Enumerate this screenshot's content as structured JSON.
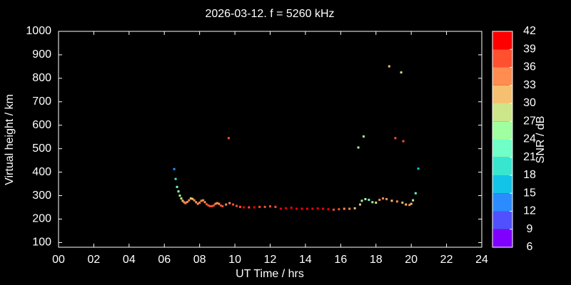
{
  "chart_data": {
    "type": "scatter",
    "title": "2026-03-12. f = 5260 kHz",
    "x_label": "UT Time / hrs",
    "y_label": "Virtual height / km",
    "colorbar_label": "SNR / dB",
    "xlim": [
      0,
      24
    ],
    "ylim": [
      80,
      1000
    ],
    "xticks": [
      {
        "value": 0,
        "label": "00"
      },
      {
        "value": 2,
        "label": "02"
      },
      {
        "value": 4,
        "label": "04"
      },
      {
        "value": 6,
        "label": "06"
      },
      {
        "value": 8,
        "label": "08"
      },
      {
        "value": 10,
        "label": "10"
      },
      {
        "value": 12,
        "label": "12"
      },
      {
        "value": 14,
        "label": "14"
      },
      {
        "value": 16,
        "label": "16"
      },
      {
        "value": 18,
        "label": "18"
      },
      {
        "value": 20,
        "label": "20"
      },
      {
        "value": 22,
        "label": "22"
      },
      {
        "value": 24,
        "label": "24"
      }
    ],
    "yticks": [
      100,
      200,
      300,
      400,
      500,
      600,
      700,
      800,
      900,
      1000
    ],
    "clim": [
      6,
      42
    ],
    "cticks": [
      6,
      9,
      12,
      15,
      18,
      21,
      24,
      27,
      30,
      33,
      36,
      39,
      42
    ],
    "colors": [
      "#8000ff",
      "#5050ff",
      "#2a8cff",
      "#12c4e6",
      "#38e6d0",
      "#70ffc8",
      "#a0ffa0",
      "#cce68a",
      "#f5c070",
      "#ff8c50",
      "#ff5030",
      "#ff0000"
    ],
    "series": [
      {
        "x": [
          6.56,
          6.64,
          6.72,
          6.8,
          6.88,
          6.96,
          7.04,
          7.12,
          7.2,
          7.3,
          7.4,
          7.5,
          7.6,
          7.7,
          7.8,
          7.9,
          8.0,
          8.1,
          8.2,
          8.3,
          8.4,
          8.5,
          8.6,
          8.7,
          8.8,
          8.9,
          9.0,
          9.1,
          9.2,
          9.3,
          9.5,
          9.65,
          9.7,
          9.9,
          10.1,
          10.3,
          10.5,
          10.8,
          11.1,
          11.4,
          11.7,
          12.0,
          12.3,
          12.6,
          12.9,
          13.2,
          13.5,
          13.8,
          14.1,
          14.4,
          14.7,
          15.0,
          15.3,
          15.6,
          15.9,
          16.2,
          16.5,
          16.8,
          17.0,
          17.1,
          17.2,
          17.3,
          17.4,
          17.6,
          17.8,
          18.0,
          18.2,
          18.4,
          18.6,
          18.75,
          18.9,
          19.1,
          19.2,
          19.43,
          19.5,
          19.55,
          19.7,
          19.9,
          20.0,
          20.1,
          20.25,
          20.4
        ],
        "values": [
          413,
          371,
          337,
          318,
          300,
          288,
          278,
          272,
          268,
          273,
          280,
          288,
          286,
          280,
          272,
          265,
          270,
          278,
          280,
          272,
          263,
          258,
          255,
          255,
          258,
          265,
          268,
          265,
          258,
          255,
          262,
          545,
          268,
          262,
          256,
          252,
          250,
          250,
          250,
          252,
          252,
          254,
          252,
          244,
          246,
          248,
          244,
          244,
          244,
          244,
          245,
          244,
          242,
          240,
          242,
          244,
          244,
          246,
          505,
          262,
          278,
          552,
          285,
          282,
          272,
          270,
          282,
          288,
          285,
          851,
          278,
          545,
          275,
          825,
          270,
          532,
          262,
          260,
          265,
          280,
          310,
          415
        ],
        "snr": [
          14,
          19,
          21,
          24,
          26,
          28,
          31,
          33,
          35,
          34,
          33,
          32,
          31,
          33,
          35,
          35,
          34,
          33,
          33,
          35,
          36,
          37,
          37,
          37,
          36,
          35,
          34,
          35,
          36,
          37,
          35,
          37,
          34,
          36,
          37,
          38,
          39,
          38,
          39,
          38,
          38,
          37,
          38,
          40,
          39,
          39,
          40,
          40,
          40,
          39,
          39,
          40,
          39,
          38,
          36,
          34,
          33,
          31,
          24,
          30,
          26,
          24,
          24,
          23,
          25,
          27,
          33,
          35,
          34,
          30,
          32,
          37,
          33,
          27,
          31,
          37,
          32,
          33,
          31,
          27,
          23,
          17
        ]
      }
    ]
  }
}
